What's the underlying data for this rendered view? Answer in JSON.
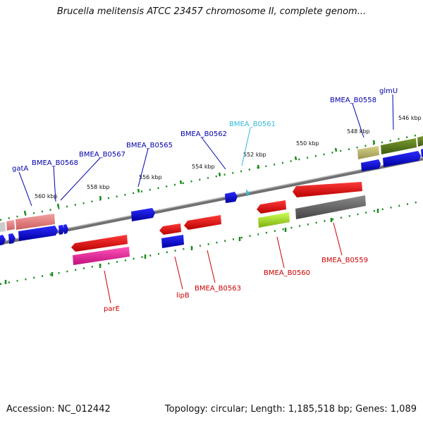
{
  "title": "Brucella melitensis ATCC 23457 chromosome II, complete genom...",
  "footer": {
    "accession": "Accession: NC_012442",
    "topology": "Topology: circular; Length: 1,185,518 bp; Genes: 1,089"
  },
  "colors": {
    "backbone": "#808080",
    "tick": "#1a8a1a",
    "label_blue": "#0000aa",
    "label_red": "#cc0000",
    "label_cyan": "#33bbdd"
  },
  "scale_labels": [
    "546 kbp",
    "548 kbp",
    "550 kbp",
    "552 kbp",
    "554 kbp",
    "556 kbp",
    "558 kbp",
    "560 kbp"
  ],
  "gene_labels": [
    {
      "name": "glmU",
      "color": "blue"
    },
    {
      "name": "BMEA_B0558",
      "color": "blue"
    },
    {
      "name": "BMEA_B0561",
      "color": "cyan"
    },
    {
      "name": "BMEA_B0562",
      "color": "blue"
    },
    {
      "name": "BMEA_B0565",
      "color": "blue"
    },
    {
      "name": "BMEA_B0567",
      "color": "blue"
    },
    {
      "name": "BMEA_B0568",
      "color": "blue"
    },
    {
      "name": "gatA",
      "color": "blue"
    },
    {
      "name": "parE",
      "color": "red"
    },
    {
      "name": "lipB",
      "color": "red"
    },
    {
      "name": "BMEA_B0563",
      "color": "red"
    },
    {
      "name": "BMEA_B0560",
      "color": "red"
    },
    {
      "name": "BMEA_B0559",
      "color": "red"
    }
  ]
}
